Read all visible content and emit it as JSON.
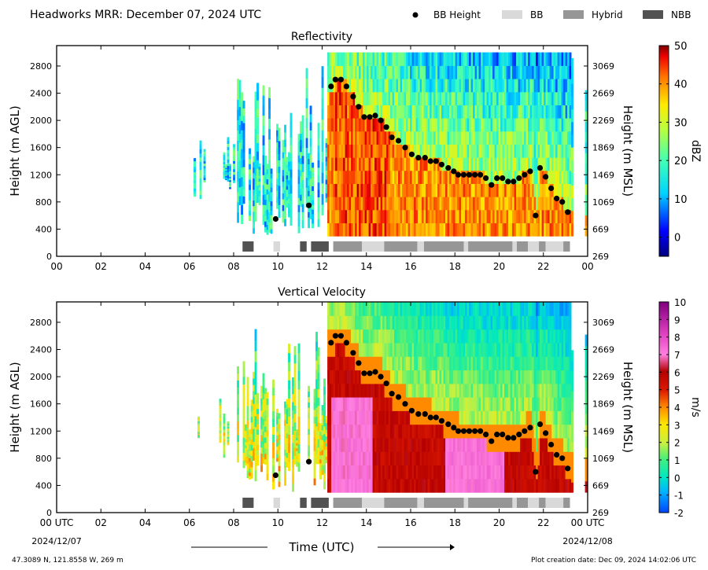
{
  "header": {
    "title": "Headworks MRR:  December 07, 2024 UTC",
    "legend": [
      {
        "kind": "dot",
        "label": "BB Height",
        "color": "#000000"
      },
      {
        "kind": "swatch",
        "label": "BB",
        "color": "#d9d9d9"
      },
      {
        "kind": "swatch",
        "label": "Hybrid",
        "color": "#969696"
      },
      {
        "kind": "swatch",
        "label": "NBB",
        "color": "#525252"
      }
    ]
  },
  "footer": {
    "location": "47.3089 N, 121.8558 W, 269 m",
    "creation": "Plot creation date: Dec 09, 2024 14:02:06 UTC",
    "time_label": "Time (UTC)",
    "start_date": "2024/12/07",
    "end_date": "2024/12/08"
  },
  "colors": {
    "nbb": "#525252",
    "hybrid": "#969696",
    "bb": "#d9d9d9"
  },
  "chart_data": [
    {
      "type": "heatmap",
      "title": "Reflectivity",
      "ylabel": "Height (m AGL)",
      "ylabel_right": "Height (m MSL)",
      "xlim": [
        0,
        24
      ],
      "ylim": [
        0,
        3100
      ],
      "x_ticks": [
        "00",
        "02",
        "04",
        "06",
        "08",
        "10",
        "12",
        "14",
        "16",
        "18",
        "20",
        "22",
        "00"
      ],
      "y_ticks": [
        0,
        400,
        800,
        1200,
        1600,
        2000,
        2400,
        2800
      ],
      "y_ticks_right": [
        "269",
        "669",
        "1069",
        "1469",
        "1869",
        "2269",
        "2669",
        "3069"
      ],
      "colorbar": {
        "label": "dBZ",
        "min": -5,
        "max": 50,
        "ticks": [
          0,
          10,
          20,
          30,
          40,
          50
        ]
      },
      "bb_height": [
        [
          9.9,
          550
        ],
        [
          11.4,
          750
        ],
        [
          12.4,
          2500
        ],
        [
          12.6,
          2600
        ],
        [
          12.85,
          2600
        ],
        [
          13.1,
          2500
        ],
        [
          13.4,
          2350
        ],
        [
          13.65,
          2200
        ],
        [
          13.9,
          2050
        ],
        [
          14.15,
          2050
        ],
        [
          14.4,
          2070
        ],
        [
          14.65,
          2000
        ],
        [
          14.9,
          1900
        ],
        [
          15.15,
          1750
        ],
        [
          15.45,
          1700
        ],
        [
          15.75,
          1600
        ],
        [
          16.05,
          1500
        ],
        [
          16.35,
          1450
        ],
        [
          16.65,
          1450
        ],
        [
          16.9,
          1400
        ],
        [
          17.15,
          1400
        ],
        [
          17.4,
          1350
        ],
        [
          17.7,
          1300
        ],
        [
          17.95,
          1250
        ],
        [
          18.15,
          1200
        ],
        [
          18.4,
          1200
        ],
        [
          18.65,
          1200
        ],
        [
          18.9,
          1200
        ],
        [
          19.15,
          1200
        ],
        [
          19.4,
          1150
        ],
        [
          19.65,
          1050
        ],
        [
          19.9,
          1150
        ],
        [
          20.15,
          1150
        ],
        [
          20.4,
          1100
        ],
        [
          20.65,
          1100
        ],
        [
          20.9,
          1150
        ],
        [
          21.15,
          1200
        ],
        [
          21.4,
          1250
        ],
        [
          21.65,
          600
        ],
        [
          21.85,
          1300
        ],
        [
          22.1,
          1170
        ],
        [
          22.35,
          1000
        ],
        [
          22.6,
          850
        ],
        [
          22.85,
          800
        ],
        [
          23.1,
          650
        ]
      ],
      "band_type": [
        [
          8.4,
          8.9,
          "NBB"
        ],
        [
          9.8,
          10.1,
          "BB"
        ],
        [
          11.0,
          11.3,
          "NBB"
        ],
        [
          11.5,
          12.3,
          "NBB"
        ],
        [
          12.5,
          13.8,
          "Hybrid"
        ],
        [
          13.8,
          14.8,
          "BB"
        ],
        [
          14.8,
          16.3,
          "Hybrid"
        ],
        [
          16.3,
          16.6,
          "BB"
        ],
        [
          16.6,
          18.4,
          "Hybrid"
        ],
        [
          18.4,
          18.6,
          "BB"
        ],
        [
          18.6,
          20.6,
          "Hybrid"
        ],
        [
          20.6,
          20.8,
          "BB"
        ],
        [
          20.8,
          21.3,
          "Hybrid"
        ],
        [
          21.3,
          21.8,
          "BB"
        ],
        [
          21.8,
          22.1,
          "Hybrid"
        ],
        [
          22.1,
          22.9,
          "BB"
        ],
        [
          22.9,
          23.2,
          "Hybrid"
        ]
      ]
    },
    {
      "type": "heatmap",
      "title": "Vertical Velocity",
      "ylabel": "Height (m AGL)",
      "ylabel_right": "Height (m MSL)",
      "xlim": [
        0,
        24
      ],
      "ylim": [
        0,
        3100
      ],
      "x_ticks": [
        "00 UTC",
        "02",
        "04",
        "06",
        "08",
        "10",
        "12",
        "14",
        "16",
        "18",
        "20",
        "22",
        "00 UTC"
      ],
      "y_ticks": [
        0,
        400,
        800,
        1200,
        1600,
        2000,
        2400,
        2800
      ],
      "y_ticks_right": [
        "269",
        "669",
        "1069",
        "1469",
        "1869",
        "2269",
        "2669",
        "3069"
      ],
      "colorbar": {
        "label": "m/s",
        "min": -2,
        "max": 10,
        "ticks": [
          -2,
          -1,
          0,
          1,
          2,
          3,
          4,
          5,
          6,
          7,
          8,
          9,
          10
        ]
      },
      "bb_height": [
        [
          9.9,
          550
        ],
        [
          11.4,
          750
        ],
        [
          12.4,
          2500
        ],
        [
          12.6,
          2600
        ],
        [
          12.85,
          2600
        ],
        [
          13.1,
          2500
        ],
        [
          13.4,
          2350
        ],
        [
          13.65,
          2200
        ],
        [
          13.9,
          2050
        ],
        [
          14.15,
          2050
        ],
        [
          14.4,
          2070
        ],
        [
          14.65,
          2000
        ],
        [
          14.9,
          1900
        ],
        [
          15.15,
          1750
        ],
        [
          15.45,
          1700
        ],
        [
          15.75,
          1600
        ],
        [
          16.05,
          1500
        ],
        [
          16.35,
          1450
        ],
        [
          16.65,
          1450
        ],
        [
          16.9,
          1400
        ],
        [
          17.15,
          1400
        ],
        [
          17.4,
          1350
        ],
        [
          17.7,
          1300
        ],
        [
          17.95,
          1250
        ],
        [
          18.15,
          1200
        ],
        [
          18.4,
          1200
        ],
        [
          18.65,
          1200
        ],
        [
          18.9,
          1200
        ],
        [
          19.15,
          1200
        ],
        [
          19.4,
          1150
        ],
        [
          19.65,
          1050
        ],
        [
          19.9,
          1150
        ],
        [
          20.15,
          1150
        ],
        [
          20.4,
          1100
        ],
        [
          20.65,
          1100
        ],
        [
          20.9,
          1150
        ],
        [
          21.15,
          1200
        ],
        [
          21.4,
          1250
        ],
        [
          21.65,
          600
        ],
        [
          21.85,
          1300
        ],
        [
          22.1,
          1170
        ],
        [
          22.35,
          1000
        ],
        [
          22.6,
          850
        ],
        [
          22.85,
          800
        ],
        [
          23.1,
          650
        ]
      ],
      "band_type": [
        [
          8.4,
          8.9,
          "NBB"
        ],
        [
          9.8,
          10.1,
          "BB"
        ],
        [
          11.0,
          11.3,
          "NBB"
        ],
        [
          11.5,
          12.3,
          "NBB"
        ],
        [
          12.5,
          13.8,
          "Hybrid"
        ],
        [
          13.8,
          14.8,
          "BB"
        ],
        [
          14.8,
          16.3,
          "Hybrid"
        ],
        [
          16.3,
          16.6,
          "BB"
        ],
        [
          16.6,
          18.4,
          "Hybrid"
        ],
        [
          18.4,
          18.6,
          "BB"
        ],
        [
          18.6,
          20.6,
          "Hybrid"
        ],
        [
          20.6,
          20.8,
          "BB"
        ],
        [
          20.8,
          21.3,
          "Hybrid"
        ],
        [
          21.3,
          21.8,
          "BB"
        ],
        [
          21.8,
          22.1,
          "Hybrid"
        ],
        [
          22.1,
          22.9,
          "BB"
        ],
        [
          22.9,
          23.2,
          "Hybrid"
        ]
      ]
    }
  ]
}
